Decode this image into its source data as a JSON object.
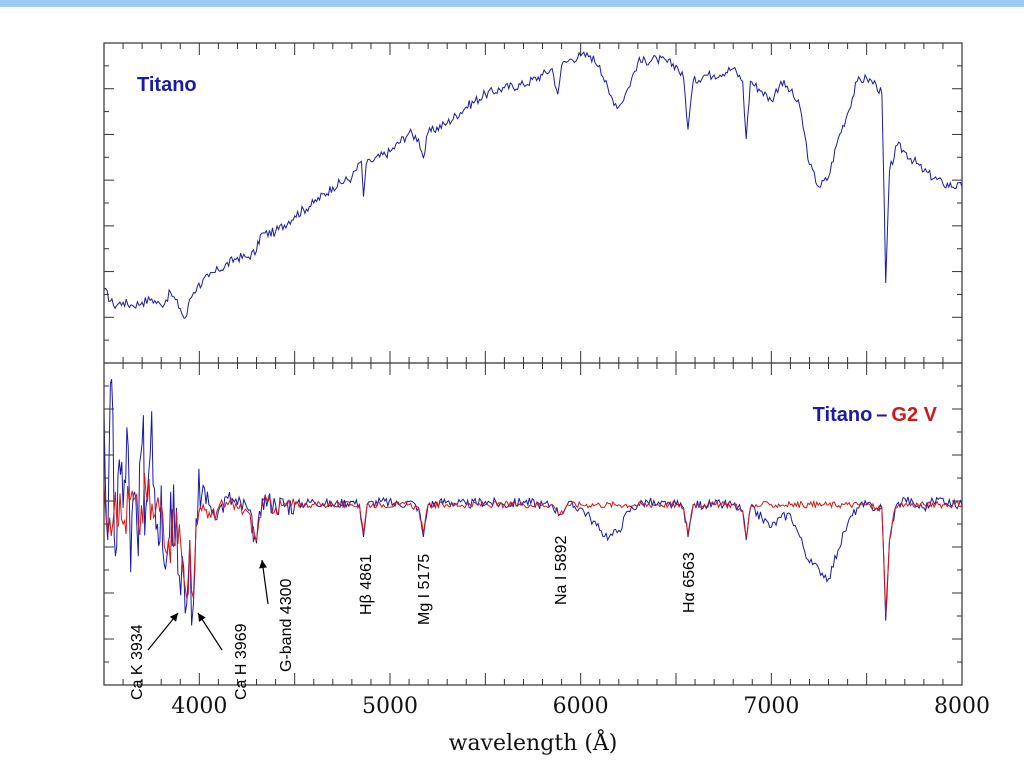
{
  "colors": {
    "titan": "#1a1aa8",
    "g2v": "#d01818",
    "band": "#9ccaf4",
    "axis": "#333333"
  },
  "chart_data": [
    {
      "type": "line",
      "panel": "top",
      "xlabel": "wavelength (Å)",
      "xlim": [
        3500,
        8000
      ],
      "x_ticks": [
        4000,
        5000,
        6000,
        7000,
        8000
      ],
      "label": "Titano",
      "series": [
        {
          "name": "Titano",
          "color": "#1a1aa8",
          "x": [
            3500,
            3550,
            3600,
            3650,
            3700,
            3750,
            3800,
            3850,
            3900,
            3920,
            3935,
            3950,
            3970,
            3990,
            4050,
            4100,
            4200,
            4250,
            4300,
            4320,
            4400,
            4500,
            4600,
            4700,
            4800,
            4850,
            4861,
            4875,
            4900,
            5000,
            5100,
            5150,
            5175,
            5200,
            5300,
            5400,
            5500,
            5600,
            5700,
            5800,
            5850,
            5880,
            5890,
            5900,
            5950,
            6000,
            6050,
            6100,
            6150,
            6200,
            6250,
            6300,
            6400,
            6500,
            6540,
            6563,
            6590,
            6650,
            6700,
            6800,
            6850,
            6868,
            6890,
            6950,
            7000,
            7050,
            7100,
            7150,
            7200,
            7250,
            7300,
            7350,
            7400,
            7450,
            7500,
            7550,
            7580,
            7600,
            7620,
            7660,
            7700,
            7800,
            7900,
            8000
          ],
          "values": [
            0.23,
            0.18,
            0.19,
            0.18,
            0.19,
            0.2,
            0.18,
            0.22,
            0.17,
            0.14,
            0.15,
            0.2,
            0.22,
            0.24,
            0.27,
            0.29,
            0.33,
            0.33,
            0.35,
            0.4,
            0.41,
            0.46,
            0.5,
            0.55,
            0.58,
            0.63,
            0.52,
            0.62,
            0.63,
            0.66,
            0.72,
            0.7,
            0.64,
            0.72,
            0.75,
            0.8,
            0.84,
            0.86,
            0.87,
            0.9,
            0.92,
            0.84,
            0.88,
            0.93,
            0.95,
            0.96,
            0.96,
            0.93,
            0.84,
            0.8,
            0.86,
            0.94,
            0.95,
            0.93,
            0.89,
            0.73,
            0.88,
            0.9,
            0.9,
            0.92,
            0.88,
            0.7,
            0.88,
            0.85,
            0.82,
            0.88,
            0.85,
            0.8,
            0.62,
            0.55,
            0.58,
            0.7,
            0.78,
            0.88,
            0.89,
            0.87,
            0.84,
            0.25,
            0.6,
            0.68,
            0.66,
            0.6,
            0.56,
            0.55
          ]
        }
      ]
    },
    {
      "type": "line",
      "panel": "bottom",
      "xlabel": "wavelength (Å)",
      "xlim": [
        3500,
        8000
      ],
      "x_ticks": [
        4000,
        5000,
        6000,
        7000,
        8000
      ],
      "label_part1": "Titano",
      "label_dash": "–",
      "label_part2": "G2 V",
      "series": [
        {
          "name": "Titano",
          "color": "#1a1aa8",
          "x": [
            3500,
            3520,
            3540,
            3560,
            3580,
            3600,
            3620,
            3640,
            3660,
            3680,
            3700,
            3720,
            3750,
            3780,
            3800,
            3830,
            3850,
            3880,
            3910,
            3934,
            3950,
            3969,
            3990,
            4020,
            4050,
            4100,
            4150,
            4200,
            4250,
            4300,
            4330,
            4400,
            4500,
            4600,
            4700,
            4800,
            4840,
            4861,
            4880,
            4950,
            5050,
            5100,
            5150,
            5175,
            5200,
            5300,
            5400,
            5500,
            5600,
            5700,
            5800,
            5850,
            5892,
            5930,
            6000,
            6050,
            6100,
            6150,
            6200,
            6250,
            6300,
            6350,
            6400,
            6450,
            6500,
            6540,
            6563,
            6590,
            6650,
            6700,
            6750,
            6800,
            6850,
            6868,
            6890,
            6950,
            7000,
            7050,
            7100,
            7150,
            7200,
            7250,
            7300,
            7350,
            7400,
            7450,
            7500,
            7550,
            7580,
            7600,
            7620,
            7650,
            7700,
            7750,
            7800,
            7850,
            7900,
            7950,
            8000
          ],
          "values": [
            0.85,
            0.45,
            0.95,
            0.4,
            0.7,
            0.55,
            0.8,
            0.35,
            0.6,
            0.4,
            0.75,
            0.55,
            0.85,
            0.5,
            0.62,
            0.4,
            0.6,
            0.55,
            0.4,
            0.25,
            0.45,
            0.25,
            0.5,
            0.62,
            0.56,
            0.54,
            0.58,
            0.56,
            0.55,
            0.44,
            0.58,
            0.56,
            0.56,
            0.57,
            0.56,
            0.57,
            0.56,
            0.46,
            0.56,
            0.57,
            0.56,
            0.57,
            0.55,
            0.46,
            0.56,
            0.57,
            0.56,
            0.57,
            0.56,
            0.57,
            0.56,
            0.56,
            0.53,
            0.56,
            0.55,
            0.52,
            0.48,
            0.46,
            0.48,
            0.54,
            0.56,
            0.57,
            0.56,
            0.56,
            0.56,
            0.55,
            0.46,
            0.56,
            0.56,
            0.56,
            0.56,
            0.56,
            0.54,
            0.45,
            0.55,
            0.52,
            0.49,
            0.52,
            0.53,
            0.46,
            0.38,
            0.36,
            0.33,
            0.42,
            0.5,
            0.55,
            0.56,
            0.55,
            0.55,
            0.2,
            0.45,
            0.55,
            0.58,
            0.56,
            0.55,
            0.57,
            0.58,
            0.56,
            0.56
          ]
        },
        {
          "name": "G2 V",
          "color": "#d01818",
          "x": [
            3500,
            3530,
            3560,
            3600,
            3640,
            3680,
            3720,
            3760,
            3800,
            3840,
            3880,
            3910,
            3934,
            3950,
            3969,
            3990,
            4020,
            4060,
            4100,
            4150,
            4200,
            4250,
            4300,
            4330,
            4400,
            4500,
            4600,
            4700,
            4800,
            4840,
            4861,
            4880,
            4950,
            5050,
            5100,
            5150,
            5175,
            5200,
            5300,
            5400,
            5500,
            5600,
            5700,
            5800,
            5850,
            5892,
            5930,
            6000,
            6100,
            6200,
            6300,
            6400,
            6500,
            6540,
            6563,
            6590,
            6650,
            6700,
            6800,
            6850,
            6868,
            6890,
            6950,
            7000,
            7100,
            7200,
            7300,
            7400,
            7500,
            7550,
            7580,
            7600,
            7620,
            7650,
            7700,
            7800,
            7900,
            8000
          ],
          "values": [
            0.62,
            0.52,
            0.6,
            0.5,
            0.58,
            0.5,
            0.6,
            0.52,
            0.56,
            0.45,
            0.54,
            0.38,
            0.27,
            0.45,
            0.27,
            0.5,
            0.56,
            0.52,
            0.55,
            0.56,
            0.55,
            0.54,
            0.45,
            0.57,
            0.55,
            0.56,
            0.56,
            0.56,
            0.56,
            0.56,
            0.47,
            0.56,
            0.56,
            0.56,
            0.56,
            0.55,
            0.47,
            0.56,
            0.56,
            0.56,
            0.56,
            0.56,
            0.56,
            0.56,
            0.56,
            0.53,
            0.56,
            0.56,
            0.56,
            0.56,
            0.56,
            0.56,
            0.56,
            0.55,
            0.47,
            0.56,
            0.56,
            0.56,
            0.56,
            0.54,
            0.46,
            0.55,
            0.56,
            0.56,
            0.56,
            0.56,
            0.56,
            0.56,
            0.56,
            0.55,
            0.55,
            0.22,
            0.45,
            0.55,
            0.56,
            0.56,
            0.56,
            0.56
          ]
        }
      ],
      "annotations": [
        {
          "text": "Ca K 3934",
          "x": 3934,
          "arrow": true
        },
        {
          "text": "Ca H 3969",
          "x": 3969,
          "arrow": true
        },
        {
          "text": "G-band 4300",
          "x": 4300,
          "arrow": true
        },
        {
          "text": "Hβ 4861",
          "x": 4861,
          "arrow": false
        },
        {
          "text": "Mg I 5175",
          "x": 5175,
          "arrow": false
        },
        {
          "text": "Na I 5892",
          "x": 5892,
          "arrow": false
        },
        {
          "text": "Hα 6563",
          "x": 6563,
          "arrow": false
        }
      ]
    }
  ]
}
